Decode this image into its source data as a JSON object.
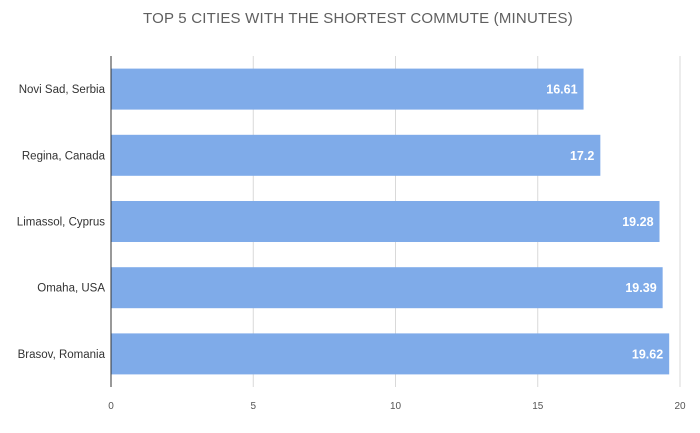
{
  "chart_data": {
    "type": "bar",
    "orientation": "horizontal",
    "title": "TOP 5 CITIES WITH THE SHORTEST COMMUTE (MINUTES)",
    "categories": [
      "Novi Sad, Serbia",
      "Regina, Canada",
      "Limassol, Cyprus",
      "Omaha, USA",
      "Brasov, Romania"
    ],
    "values": [
      16.61,
      17.2,
      19.28,
      19.39,
      19.62
    ],
    "data_labels": [
      "16.61",
      "17.2",
      "19.28",
      "19.39",
      "19.62"
    ],
    "xlim": [
      0,
      20
    ],
    "xticks": [
      0,
      5,
      10,
      15,
      20
    ],
    "xtick_labels": [
      "0",
      "5",
      "10",
      "15",
      "20"
    ],
    "grid": true,
    "legend": "none",
    "colors": {
      "bar": "#7fabe9",
      "grid": "#d9d9d9",
      "axis": "#333333",
      "title": "#5f5f5f",
      "data_label": "#ffffff"
    }
  }
}
